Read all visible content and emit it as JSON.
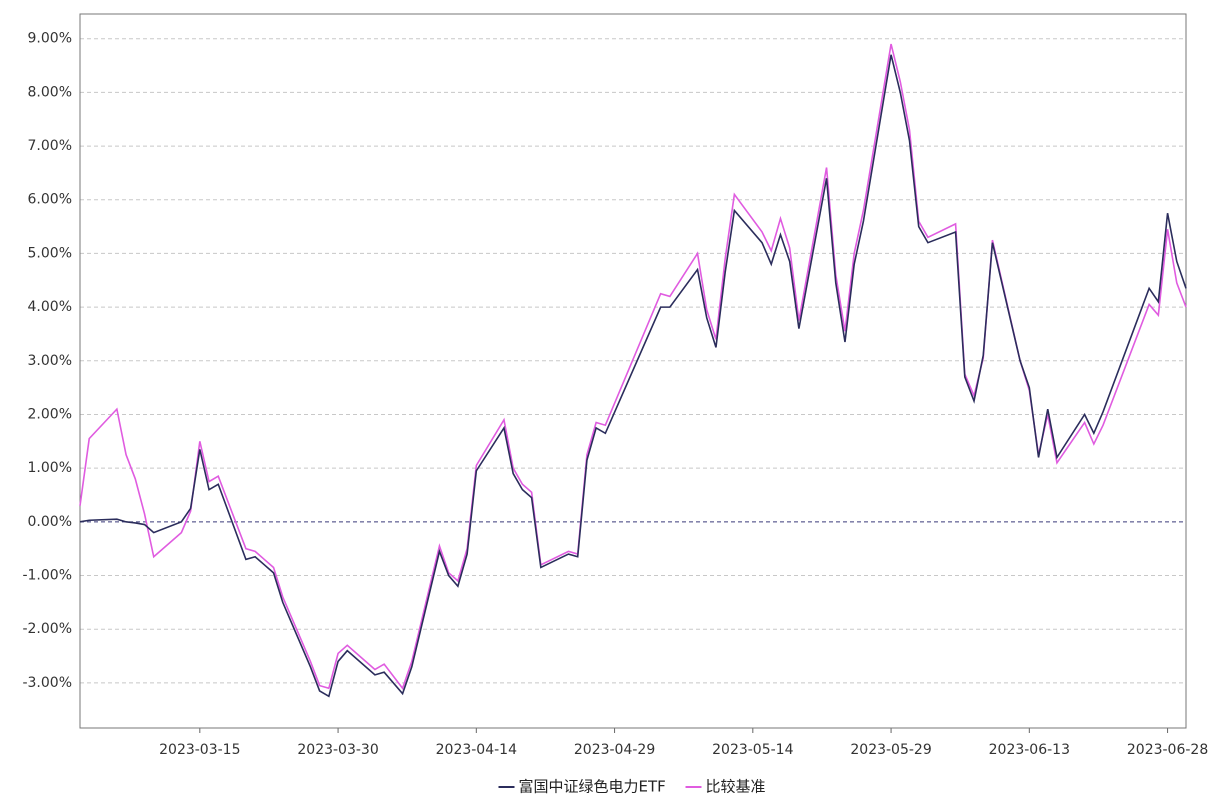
{
  "chart_data": {
    "type": "line",
    "x": [
      "2023-03-02",
      "2023-03-03",
      "2023-03-06",
      "2023-03-07",
      "2023-03-08",
      "2023-03-09",
      "2023-03-10",
      "2023-03-13",
      "2023-03-14",
      "2023-03-15",
      "2023-03-16",
      "2023-03-17",
      "2023-03-20",
      "2023-03-21",
      "2023-03-22",
      "2023-03-23",
      "2023-03-24",
      "2023-03-27",
      "2023-03-28",
      "2023-03-29",
      "2023-03-30",
      "2023-03-31",
      "2023-04-03",
      "2023-04-04",
      "2023-04-06",
      "2023-04-07",
      "2023-04-10",
      "2023-04-11",
      "2023-04-12",
      "2023-04-13",
      "2023-04-14",
      "2023-04-17",
      "2023-04-18",
      "2023-04-19",
      "2023-04-20",
      "2023-04-21",
      "2023-04-24",
      "2023-04-25",
      "2023-04-26",
      "2023-04-27",
      "2023-04-28",
      "2023-05-04",
      "2023-05-05",
      "2023-05-08",
      "2023-05-09",
      "2023-05-10",
      "2023-05-11",
      "2023-05-12",
      "2023-05-15",
      "2023-05-16",
      "2023-05-17",
      "2023-05-18",
      "2023-05-19",
      "2023-05-22",
      "2023-05-23",
      "2023-05-24",
      "2023-05-25",
      "2023-05-26",
      "2023-05-29",
      "2023-05-30",
      "2023-05-31",
      "2023-06-01",
      "2023-06-02",
      "2023-06-05",
      "2023-06-06",
      "2023-06-07",
      "2023-06-08",
      "2023-06-09",
      "2023-06-12",
      "2023-06-13",
      "2023-06-14",
      "2023-06-15",
      "2023-06-16",
      "2023-06-19",
      "2023-06-20",
      "2023-06-21",
      "2023-06-26",
      "2023-06-27",
      "2023-06-28",
      "2023-06-29",
      "2023-06-30"
    ],
    "series": [
      {
        "name": "富国中证绿色电力ETF",
        "color": "#2b2d5c",
        "values": [
          0.0,
          0.03,
          0.05,
          0.0,
          -0.02,
          -0.05,
          -0.2,
          0.0,
          0.25,
          1.35,
          0.6,
          0.7,
          -0.7,
          -0.65,
          -0.8,
          -0.95,
          -1.5,
          -2.7,
          -3.15,
          -3.25,
          -2.6,
          -2.4,
          -2.85,
          -2.8,
          -3.2,
          -2.7,
          -0.55,
          -1.0,
          -1.2,
          -0.6,
          0.95,
          1.75,
          0.9,
          0.6,
          0.45,
          -0.85,
          -0.6,
          -0.65,
          1.15,
          1.75,
          1.65,
          4.0,
          4.0,
          4.7,
          3.8,
          3.25,
          4.65,
          5.8,
          5.2,
          4.8,
          5.35,
          4.85,
          3.6,
          6.4,
          4.45,
          3.35,
          4.8,
          5.6,
          8.7,
          8.0,
          7.1,
          5.5,
          5.2,
          5.4,
          2.7,
          2.25,
          3.1,
          5.2,
          3.0,
          2.5,
          1.2,
          2.1,
          1.2,
          2.0,
          1.65,
          2.05,
          4.35,
          4.1,
          5.75,
          4.85,
          4.35
        ]
      },
      {
        "name": "比较基准",
        "color": "#e05ce0",
        "values": [
          0.3,
          1.55,
          2.1,
          1.25,
          0.8,
          0.15,
          -0.65,
          -0.2,
          0.2,
          1.5,
          0.75,
          0.85,
          -0.5,
          -0.55,
          -0.7,
          -0.85,
          -1.4,
          -2.6,
          -3.05,
          -3.1,
          -2.45,
          -2.3,
          -2.75,
          -2.65,
          -3.1,
          -2.6,
          -0.45,
          -0.95,
          -1.1,
          -0.5,
          1.05,
          1.9,
          1.0,
          0.7,
          0.55,
          -0.8,
          -0.55,
          -0.6,
          1.25,
          1.85,
          1.8,
          4.25,
          4.2,
          5.0,
          3.95,
          3.4,
          4.9,
          6.1,
          5.4,
          5.05,
          5.65,
          5.1,
          3.75,
          6.6,
          4.6,
          3.55,
          5.0,
          5.8,
          8.9,
          8.2,
          7.3,
          5.6,
          5.3,
          5.55,
          2.75,
          2.35,
          3.05,
          5.25,
          3.0,
          2.45,
          1.25,
          2.0,
          1.1,
          1.85,
          1.45,
          1.8,
          4.05,
          3.85,
          5.45,
          4.45,
          4.0
        ]
      }
    ],
    "xlim": [
      "2023-03-02",
      "2023-06-30"
    ],
    "xticks": [
      "2023-03-15",
      "2023-03-30",
      "2023-04-14",
      "2023-04-29",
      "2023-05-14",
      "2023-05-29",
      "2023-06-13",
      "2023-06-28"
    ],
    "ylim": [
      -3.84,
      9.46
    ],
    "yticks": [
      {
        "value": -3,
        "label": "-3.00%"
      },
      {
        "value": -2,
        "label": "-2.00%"
      },
      {
        "value": -1,
        "label": "-1.00%"
      },
      {
        "value": 0,
        "label": "0.00%"
      },
      {
        "value": 1,
        "label": "1.00%"
      },
      {
        "value": 2,
        "label": "2.00%"
      },
      {
        "value": 3,
        "label": "3.00%"
      },
      {
        "value": 4,
        "label": "4.00%"
      },
      {
        "value": 5,
        "label": "5.00%"
      },
      {
        "value": 6,
        "label": "6.00%"
      },
      {
        "value": 7,
        "label": "7.00%"
      },
      {
        "value": 8,
        "label": "8.00%"
      },
      {
        "value": 9,
        "label": "9.00%"
      }
    ],
    "grid": true,
    "legend": "bottom"
  }
}
